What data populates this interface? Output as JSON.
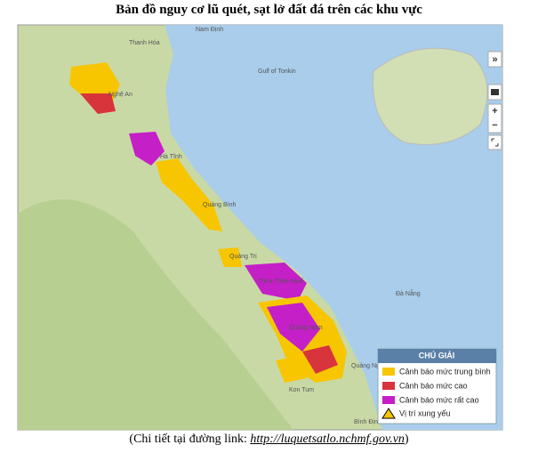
{
  "header": {
    "title": "Bản đồ nguy cơ lũ quét, sạt lở đất đá trên các khu vực"
  },
  "map": {
    "labels": [
      "Nam Định",
      "Thanh Hóa",
      "Nghệ An",
      "Gulf of Tonkin",
      "Hà Tĩnh",
      "Quảng Bình",
      "Quảng Trị",
      "Thừa Thiên Huế",
      "Đà Nẵng",
      "Quảng Nam",
      "Quảng Ngãi",
      "Kon Tum",
      "Bình Định"
    ],
    "controls": [
      "»",
      "+",
      "−"
    ],
    "legend": {
      "title": "CHÚ GIẢI",
      "items": [
        {
          "label": "Cảnh báo mức trung bình",
          "color": "#f7c600"
        },
        {
          "label": "Cảnh báo mức cao",
          "color": "#d8343c"
        },
        {
          "label": "Cảnh báo mức rất cao",
          "color": "#c51fc8"
        },
        {
          "label": "Vị trí xung yếu"
        }
      ]
    }
  },
  "caption": {
    "prefix": "(Chi tiết tại đường link: ",
    "link": "http://luquetsatlo.nchmf.gov.vn",
    "suffix": ")"
  }
}
